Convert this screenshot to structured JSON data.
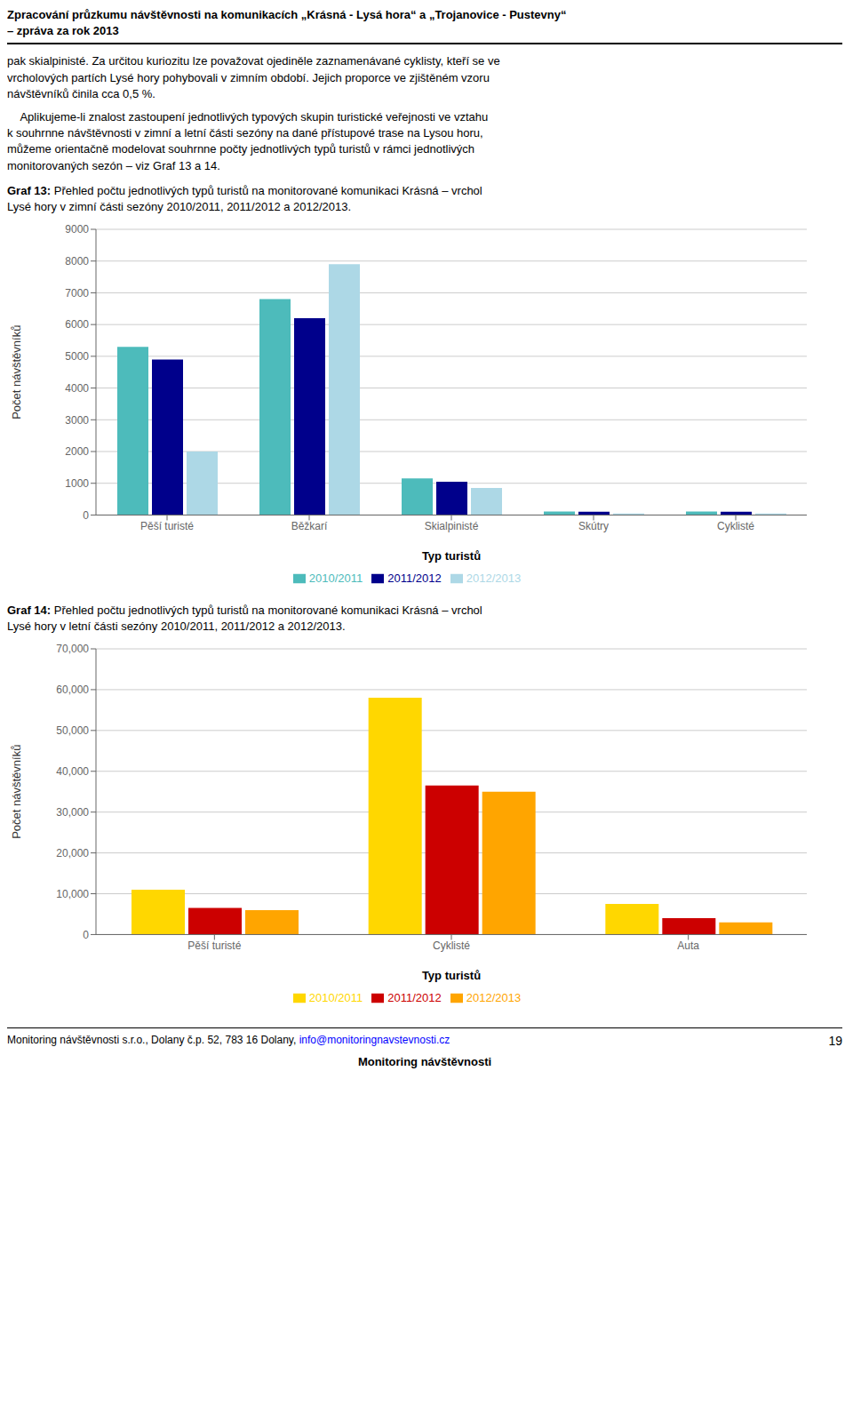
{
  "title": "Zpracování průzkumu návštěvnosti na komunikacích „Krásná - Lysá hora“ a „Trojanovice - Pustevny“",
  "subtitle": "– zpráva za rok 2013",
  "annotations": [
    "pak skialpinisté. Za určitou kuriozitu lze považovat ojediněle zaznamenávané cyklisty, kteří se ve\nvrcholových partích Lysé hory pohybovali v zimním období. Jejich proporce ve zjištěném vzoru\nnávštěvníků činila cca 0,5 %.",
    "    Aplikujeme-li znalost zastoupení jednotlivých typových skupin turistické veřejnosti ve vztahu\nk souhrnne návštěvnosti v zimní a letní části sezóny na dané přístupové trase na Lysou horu,\nmůžeme orientačně modelovat souhrnne počty jednotlivých typů turistů v rámci jednotlivých\nmonitorovaných sezón – viz Graf 13 a 14.",
    "Monitoring návštěvnosti s.r.o., Dolany č.p. 52, 783 16 Dolany, ",
    "info@monitoringnavstevnosti.cz",
    "19",
    "Monitoring návštěvnosti"
  ],
  "chart_data": [
    {
      "type": "bar",
      "title": "Graf 13: Přehled počtu jednotlivých typů turistů na monitorované komunikaci Krásná – vrchol\nLysé hory v zimní části sezóny 2010/2011, 2011/2012 a 2012/2013.",
      "x_label": "Typ turistů",
      "y_label": "Počet návštěvníků",
      "categories": [
        "Pěší turisté",
        "Běžkarí",
        "Skialpinisté",
        "Skútry",
        "Cyklisté"
      ],
      "series": [
        {
          "name": "2010/2011",
          "color": "#4DBBBB",
          "values": [
            5300,
            6800,
            1150,
            110,
            110
          ]
        },
        {
          "name": "2011/2012",
          "color": "#00008B",
          "values": [
            4900,
            6200,
            1050,
            100,
            100
          ]
        },
        {
          "name": "2012/2013",
          "color": "#ADD8E6",
          "values": [
            2000,
            7900,
            850,
            50,
            50
          ]
        }
      ],
      "ylim": [
        0,
        9000
      ],
      "yticks": [
        0,
        1000,
        2000,
        3000,
        4000,
        5000,
        6000,
        7000,
        8000,
        9000
      ],
      "grid": true,
      "legend": "bottom"
    },
    {
      "type": "bar",
      "title": "Graf 14: Přehled počtu jednotlivých typů turistů na monitorované komunikaci Krásná – vrchol\nLysé hory v letní části sezóny 2010/2011, 2011/2012 a 2012/2013.",
      "x_label": "Typ turistů",
      "y_label": "Počet návštěvníků",
      "categories": [
        "Pěší turisté",
        "Cyklisté",
        "Auta"
      ],
      "series": [
        {
          "name": "2010/2011",
          "color": "#FFD700",
          "values": [
            11000,
            58000,
            7500
          ]
        },
        {
          "name": "2011/2012",
          "color": "#CC0000",
          "values": [
            6500,
            36500,
            4000
          ]
        },
        {
          "name": "2012/2013",
          "color": "#FFA500",
          "values": [
            6000,
            35000,
            3000
          ]
        }
      ],
      "ylim": [
        0,
        70000
      ],
      "yticks": [
        0,
        {
          "value": 10000,
          "label": "10,000"
        },
        {
          "value": 20000,
          "label": "20,000"
        },
        {
          "value": 30000,
          "label": "30,000"
        },
        {
          "value": 40000,
          "label": "40,000"
        },
        {
          "value": 50000,
          "label": "50,000"
        },
        {
          "value": 60000,
          "label": "60,000"
        },
        {
          "value": 70000,
          "label": "70,000"
        }
      ],
      "grid": true,
      "legend": "bottom"
    }
  ]
}
